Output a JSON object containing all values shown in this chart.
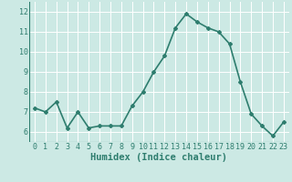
{
  "x": [
    0,
    1,
    2,
    3,
    4,
    5,
    6,
    7,
    8,
    9,
    10,
    11,
    12,
    13,
    14,
    15,
    16,
    17,
    18,
    19,
    20,
    21,
    22,
    23
  ],
  "y": [
    7.2,
    7.0,
    7.5,
    6.2,
    7.0,
    6.2,
    6.3,
    6.3,
    6.3,
    7.3,
    8.0,
    9.0,
    9.8,
    11.2,
    11.9,
    11.5,
    11.2,
    11.0,
    10.4,
    8.5,
    6.9,
    6.3,
    5.8,
    6.5
  ],
  "line_color": "#2e7d6e",
  "marker": "D",
  "marker_size": 2.0,
  "linewidth": 1.2,
  "xlabel": "Humidex (Indice chaleur)",
  "xlabel_fontsize": 7.5,
  "bg_color": "#cce9e4",
  "grid_color": "#ffffff",
  "tick_color": "#2e7d6e",
  "xlim": [
    -0.5,
    23.5
  ],
  "ylim": [
    5.5,
    12.5
  ],
  "yticks": [
    6,
    7,
    8,
    9,
    10,
    11,
    12
  ],
  "xticks": [
    0,
    1,
    2,
    3,
    4,
    5,
    6,
    7,
    8,
    9,
    10,
    11,
    12,
    13,
    14,
    15,
    16,
    17,
    18,
    19,
    20,
    21,
    22,
    23
  ],
  "tick_fontsize": 6.0
}
